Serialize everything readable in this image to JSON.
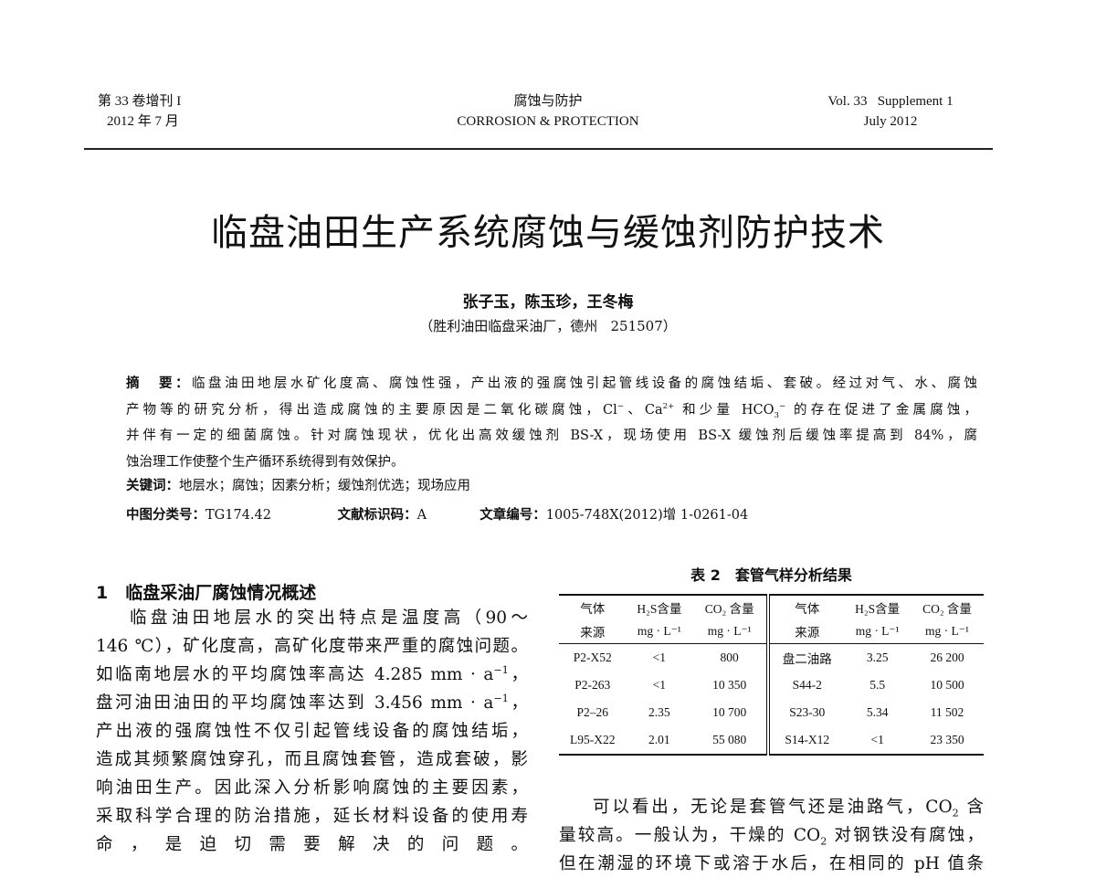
{
  "header": {
    "left_line1": "第 33 卷增刊 I",
    "left_line2": "2012 年 7 月",
    "center_line1": "腐蚀与防护",
    "center_line2": "CORROSION & PROTECTION",
    "right_line1": "Vol. 33   Supplement 1",
    "right_line2": "July 2012"
  },
  "title": "临盘油田生产系统腐蚀与缓蚀剂防护技术",
  "authors": "张子玉，陈玉珍，王冬梅",
  "affiliation": "（胜利油田临盘采油厂，德州   251507）",
  "abstract": {
    "lines": [
      [
        {
          "b": "摘　要："
        },
        {
          "t": "临盘油田地层水矿化度高、腐蚀性强，产出液的强腐蚀引起管线设备的腐蚀结垢、套破。经过对气、水、腐蚀"
        }
      ],
      [
        {
          "t": "产物等的研究分析，得出造成腐蚀的主要原因是二氧化碳腐蚀，Cl"
        },
        {
          "sup": "−"
        },
        {
          "t": "、Ca"
        },
        {
          "sup": "2+"
        },
        {
          "t": " 和少量 HCO"
        },
        {
          "sub": "3"
        },
        {
          "sup": "−"
        },
        {
          "t": " 的存在促进了金属腐蚀，"
        }
      ],
      [
        {
          "t": "并伴有一定的细菌腐蚀。针对腐蚀现状，优化出高效缓蚀剂 BS-X，现场使用 BS-X 缓蚀剂后缓蚀率提高到 84%，腐"
        }
      ],
      [
        {
          "t": "蚀治理工作使整个生产循环系统得到有效保护。"
        }
      ]
    ],
    "keywords_label": "关键词：",
    "keywords": "地层水；腐蚀；因素分析；缓蚀剂优选；现场应用",
    "clc_label": "中图分类号：",
    "clc": "TG174.42",
    "doc_code_label": "文献标识码：",
    "doc_code": "A",
    "article_no_label": "文章编号：",
    "article_no": "1005-748X(2012)增 1-0261-04"
  },
  "section1": {
    "heading": "1　临盘采油厂腐蚀情况概述",
    "lines": [
      [
        {
          "t": "临盘油田地层水的突出特点是温度高（90～"
        }
      ],
      [
        {
          "t": "146 ℃），矿化度高，高矿化度带来严重的腐蚀问题。"
        }
      ],
      [
        {
          "t": "如临南地层水的平均腐蚀率高达 4.285 mm · a"
        },
        {
          "sup": "−1"
        },
        {
          "t": "，"
        }
      ],
      [
        {
          "t": "盘河油田油田的平均腐蚀率达到 3.456 mm · a"
        },
        {
          "sup": "−1"
        },
        {
          "t": "，"
        }
      ],
      [
        {
          "t": "产出液的强腐蚀性不仅引起管线设备的腐蚀结垢，"
        }
      ],
      [
        {
          "t": "造成其频繁腐蚀穿孔，而且腐蚀套管，造成套破，影"
        }
      ],
      [
        {
          "t": "响油田生产。因此深入分析影响腐蚀的主要因素，"
        }
      ],
      [
        {
          "t": "采取科学合理的防治措施，延长材料设备的使用寿"
        }
      ],
      [
        {
          "t": "命，是迫切需要解决的问题。"
        }
      ]
    ]
  },
  "table2": {
    "caption": "表 2　套管气样分析结果",
    "header_row1": [
      "气体",
      "H₂S含量",
      "CO₂ 含量",
      "气体",
      "H₂S含量",
      "CO₂ 含量"
    ],
    "header_row2": [
      "来源",
      "mg · L⁻¹",
      "mg · L⁻¹",
      "来源",
      "mg · L⁻¹",
      "mg · L⁻¹"
    ],
    "rows": [
      [
        "P2-X52",
        "<1",
        "800",
        "盘二油路",
        "3.25",
        "26 200"
      ],
      [
        "P2-263",
        "<1",
        "10 350",
        "S44-2",
        "5.5",
        "10 500"
      ],
      [
        "P2–26",
        "2.35",
        "10 700",
        "S23-30",
        "5.34",
        "11 502"
      ],
      [
        "L95-X22",
        "2.01",
        "55 080",
        "S14-X12",
        "<1",
        "23 350"
      ]
    ]
  },
  "right_text": {
    "lines": [
      [
        {
          "t": "可以看出，无论是套管气还是油路气，CO"
        },
        {
          "sub": "2"
        },
        {
          "t": " 含"
        }
      ],
      [
        {
          "t": "量较高。一般认为，干燥的 CO"
        },
        {
          "sub": "2"
        },
        {
          "t": " 对钢铁没有腐蚀，"
        }
      ],
      [
        {
          "t": "但在潮湿的环境下或溶于水后，在相同的 pH 值条"
        }
      ]
    ]
  }
}
